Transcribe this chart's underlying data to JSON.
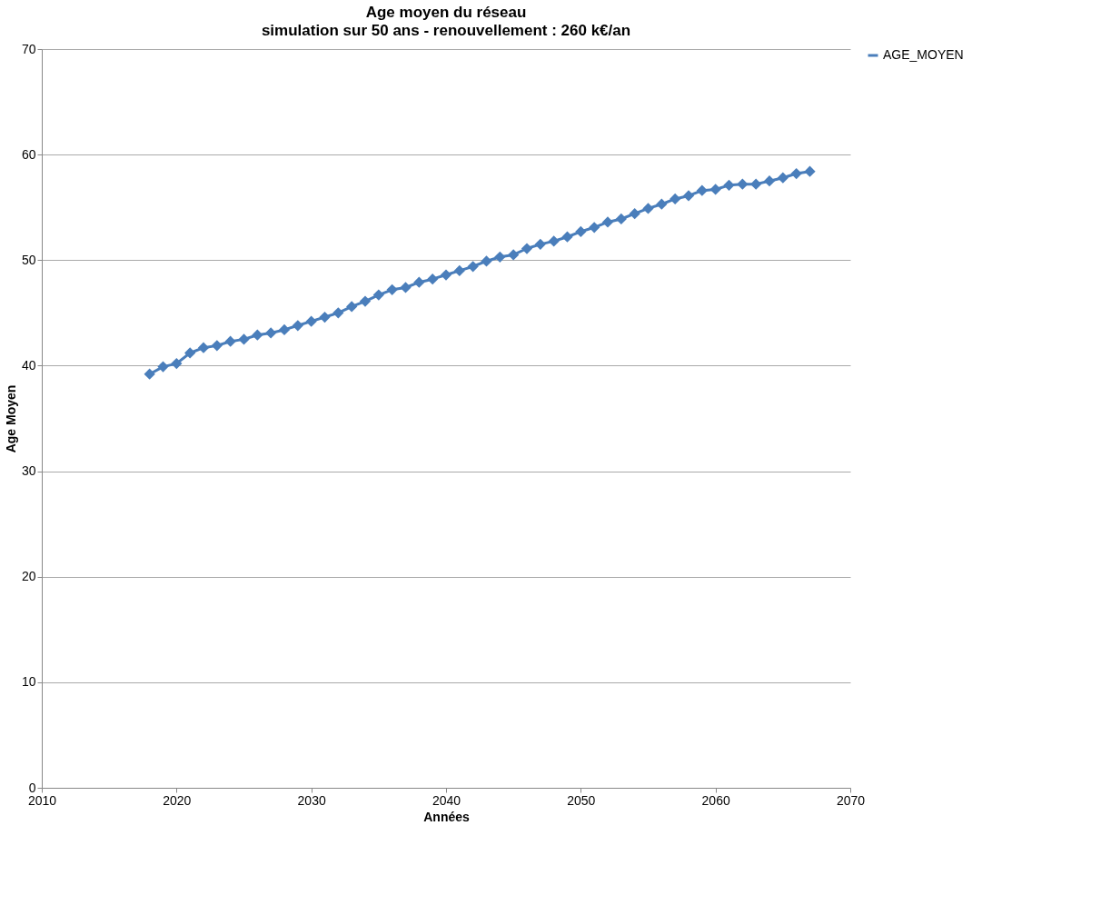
{
  "chart_data": {
    "type": "line",
    "title": "Age moyen du réseau",
    "subtitle": "simulation sur 50 ans - renouvellement : 260 k€/an",
    "xlabel": "Années",
    "ylabel": "Age Moyen",
    "x": [
      2018,
      2019,
      2020,
      2021,
      2022,
      2023,
      2024,
      2025,
      2026,
      2027,
      2028,
      2029,
      2030,
      2031,
      2032,
      2033,
      2034,
      2035,
      2036,
      2037,
      2038,
      2039,
      2040,
      2041,
      2042,
      2043,
      2044,
      2045,
      2046,
      2047,
      2048,
      2049,
      2050,
      2051,
      2052,
      2053,
      2054,
      2055,
      2056,
      2057,
      2058,
      2059,
      2060,
      2061,
      2062,
      2063,
      2064,
      2065,
      2066,
      2067
    ],
    "series": [
      {
        "name": "AGE_MOYEN",
        "color": "#4a7ebb",
        "values": [
          39.2,
          39.9,
          40.2,
          41.2,
          41.7,
          41.9,
          42.3,
          42.5,
          42.9,
          43.1,
          43.4,
          43.8,
          44.2,
          44.6,
          45.0,
          45.6,
          46.1,
          46.7,
          47.2,
          47.4,
          47.9,
          48.2,
          48.6,
          49.0,
          49.4,
          49.9,
          50.3,
          50.5,
          51.1,
          51.5,
          51.8,
          52.2,
          52.7,
          53.1,
          53.6,
          53.9,
          54.4,
          54.9,
          55.3,
          55.8,
          56.1,
          56.6,
          56.7,
          57.1,
          57.2,
          57.2,
          57.5,
          57.8,
          58.2,
          58.4
        ]
      }
    ],
    "xlim": [
      2010,
      2070
    ],
    "xticks": [
      2010,
      2020,
      2030,
      2040,
      2050,
      2060,
      2070
    ],
    "ylim": [
      0,
      70
    ],
    "yticks": [
      0,
      10,
      20,
      30,
      40,
      50,
      60,
      70
    ],
    "grid": "y",
    "legend": "right",
    "marker": "diamond",
    "line_style": "solid"
  }
}
